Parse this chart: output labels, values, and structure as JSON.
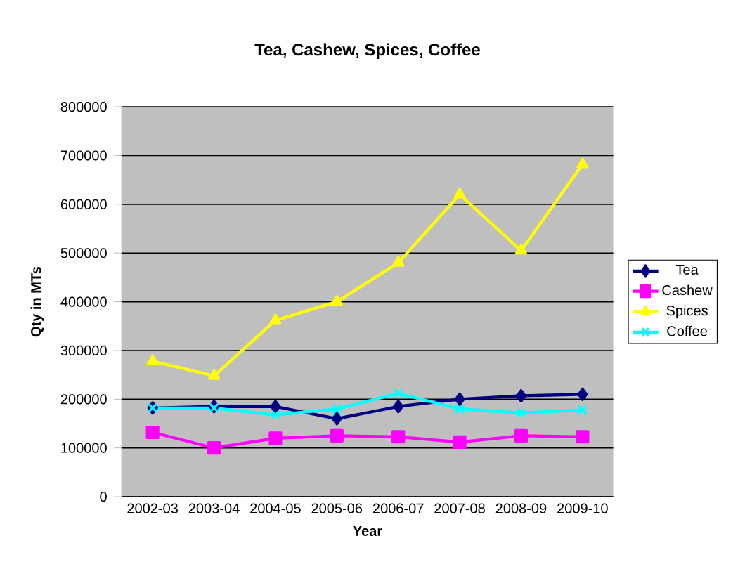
{
  "chart_data": {
    "type": "line",
    "title": "Tea, Cashew, Spices, Coffee",
    "xlabel": "Year",
    "ylabel": "Qty in MTs",
    "categories": [
      "2002-03",
      "2003-04",
      "2004-05",
      "2005-06",
      "2006-07",
      "2007-08",
      "2008-09",
      "2009-10"
    ],
    "series": [
      {
        "name": "Tea",
        "color": "#000080",
        "marker": "diamond",
        "values": [
          182000,
          185000,
          185000,
          160000,
          185000,
          200000,
          207000,
          210000
        ]
      },
      {
        "name": "Cashew",
        "color": "#ff00ff",
        "marker": "square",
        "values": [
          132000,
          100000,
          120000,
          125000,
          123000,
          112000,
          125000,
          123000
        ]
      },
      {
        "name": "Spices",
        "color": "#ffff00",
        "marker": "triangle",
        "values": [
          278000,
          248000,
          362000,
          400000,
          480000,
          620000,
          505000,
          682000
        ]
      },
      {
        "name": "Coffee",
        "color": "#00ffff",
        "marker": "cross",
        "values": [
          182000,
          182000,
          168000,
          180000,
          212000,
          180000,
          172000,
          178000
        ]
      }
    ],
    "ylim": [
      0,
      800000
    ],
    "yticks": [
      0,
      100000,
      200000,
      300000,
      400000,
      500000,
      600000,
      700000,
      800000
    ],
    "grid": "y",
    "legend": "right"
  }
}
